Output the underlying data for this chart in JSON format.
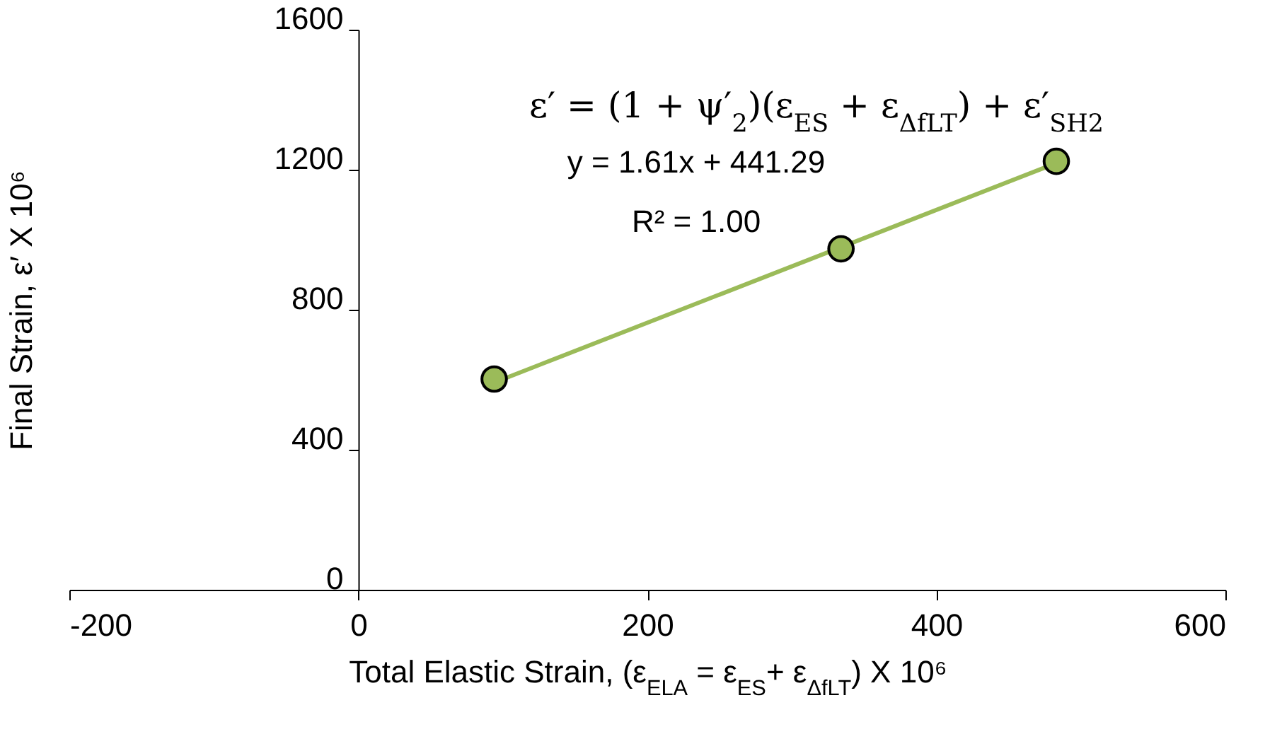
{
  "chart_data": {
    "type": "scatter",
    "xlabel": "Total Elastic Strain,  (ε$_{ELA}$ = ε$_{ES}$+ ε$_{ΔfLT}$) X 10⁶",
    "ylabel": "Final Strain, ε′ X 10⁶",
    "annotations": [
      "ε′ = (1 + ψ′$_{2}$)(ε$_{ES}$ + ε$_{ΔfLT}$) + ε′$_{SH2}$",
      "y = 1.61x + 441.29",
      "R² = 1.00"
    ],
    "series": [
      {
        "type": "line",
        "color": "#9bbb59",
        "x": [
          94,
          483
        ],
        "values": [
          592,
          1219
        ]
      },
      {
        "color": "#9bbb59",
        "marker": "circle",
        "x": [
          94,
          334,
          483
        ],
        "values": [
          602,
          974,
          1224
        ]
      }
    ],
    "xlim": [
      -200,
      600
    ],
    "xticks": [
      -200,
      0,
      200,
      400,
      600
    ],
    "ylim": [
      0,
      1600
    ],
    "yticks": [
      0,
      400,
      800,
      1200,
      1600
    ],
    "grid": false
  }
}
